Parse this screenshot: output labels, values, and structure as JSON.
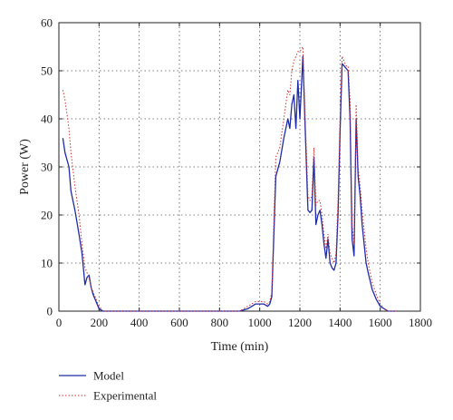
{
  "chart_data": {
    "type": "line",
    "xlabel": "Time (min)",
    "ylabel": "Power (W)",
    "xlim": [
      0,
      1800
    ],
    "ylim": [
      0,
      60
    ],
    "xticks": [
      0,
      200,
      400,
      600,
      800,
      1000,
      1200,
      1400,
      1600,
      1800
    ],
    "yticks": [
      0,
      10,
      20,
      30,
      40,
      50,
      60
    ],
    "grid": true,
    "legend_position": "below",
    "series": [
      {
        "name": "Model",
        "color": "#1f2aa8",
        "style": "solid",
        "x": [
          20,
          30,
          50,
          60,
          80,
          100,
          115,
          130,
          140,
          150,
          160,
          170,
          180,
          200,
          220,
          900,
          940,
          980,
          1000,
          1020,
          1040,
          1050,
          1060,
          1080,
          1100,
          1120,
          1140,
          1150,
          1160,
          1170,
          1180,
          1190,
          1200,
          1215,
          1225,
          1235,
          1240,
          1250,
          1260,
          1270,
          1280,
          1290,
          1300,
          1310,
          1320,
          1330,
          1340,
          1350,
          1360,
          1370,
          1380,
          1390,
          1400,
          1410,
          1420,
          1430,
          1440,
          1450,
          1460,
          1470,
          1480,
          1490,
          1500,
          1510,
          1520,
          1530,
          1540,
          1560,
          1580,
          1600,
          1620,
          1640,
          1660,
          1680
        ],
        "y": [
          36,
          33,
          30,
          25,
          21,
          16,
          12,
          5.5,
          7,
          7.5,
          5,
          3.5,
          2.5,
          0.5,
          0,
          0,
          0.5,
          1.5,
          1.5,
          1.5,
          1,
          1.5,
          3,
          28,
          31,
          36,
          40,
          38,
          43,
          45,
          38,
          48,
          40,
          53,
          40,
          27,
          21,
          20.5,
          21,
          32,
          18,
          20,
          21,
          18,
          14,
          11,
          15,
          10,
          9,
          8.5,
          10,
          20,
          37,
          51.5,
          51,
          50.5,
          50,
          40,
          15,
          11.5,
          40,
          28,
          24,
          18,
          14,
          10,
          8,
          4.5,
          2.5,
          1,
          0.5,
          0,
          0,
          0
        ]
      },
      {
        "name": "Experimental",
        "color": "#d33030",
        "style": "dotted",
        "x": [
          20,
          30,
          50,
          60,
          80,
          100,
          115,
          130,
          140,
          150,
          160,
          170,
          180,
          200,
          220,
          900,
          940,
          980,
          1000,
          1020,
          1040,
          1050,
          1060,
          1080,
          1100,
          1120,
          1140,
          1150,
          1160,
          1170,
          1180,
          1190,
          1200,
          1215,
          1225,
          1235,
          1240,
          1250,
          1260,
          1270,
          1280,
          1290,
          1300,
          1310,
          1320,
          1330,
          1340,
          1350,
          1360,
          1370,
          1380,
          1390,
          1400,
          1410,
          1420,
          1430,
          1440,
          1450,
          1460,
          1470,
          1480,
          1490,
          1500,
          1510,
          1520,
          1530,
          1540,
          1560,
          1580,
          1600,
          1620,
          1640,
          1660,
          1680
        ],
        "y": [
          46,
          44,
          38,
          33,
          26,
          20,
          14,
          9,
          8,
          7,
          5,
          4,
          3,
          1,
          0,
          0,
          1,
          2,
          2,
          2,
          1.5,
          2,
          4,
          32,
          34,
          40,
          46,
          45,
          50,
          52,
          53,
          54,
          54,
          55,
          42,
          30,
          24,
          23,
          24,
          34,
          22,
          23,
          23,
          20,
          16,
          13,
          16,
          12,
          11,
          10,
          12,
          23,
          40,
          53,
          52,
          51,
          51,
          44,
          18,
          14,
          43,
          30,
          26,
          21,
          17,
          13,
          10,
          6,
          3.5,
          1.5,
          0.5,
          0,
          0,
          0
        ]
      }
    ]
  }
}
